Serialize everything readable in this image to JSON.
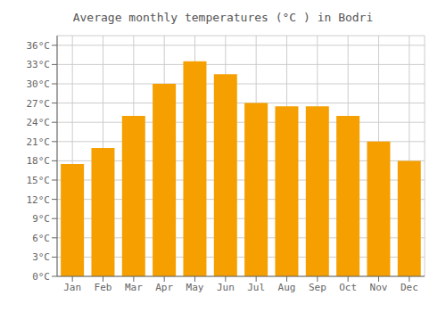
{
  "chart_data": {
    "type": "bar",
    "title": "Average monthly temperatures (°C ) in Bodri",
    "categories": [
      "Jan",
      "Feb",
      "Mar",
      "Apr",
      "May",
      "Jun",
      "Jul",
      "Aug",
      "Sep",
      "Oct",
      "Nov",
      "Dec"
    ],
    "values": [
      17.5,
      20.0,
      25.0,
      30.0,
      33.5,
      31.5,
      27.0,
      26.5,
      26.5,
      25.0,
      21.0,
      18.0
    ],
    "color": "#F5A000",
    "ylim": [
      0,
      37.5
    ],
    "yticks": [
      {
        "value": 0,
        "label": "0°C"
      },
      {
        "value": 3,
        "label": "3°C"
      },
      {
        "value": 6,
        "label": "6°C"
      },
      {
        "value": 9,
        "label": "9°C"
      },
      {
        "value": 12,
        "label": "12°C"
      },
      {
        "value": 15,
        "label": "15°C"
      },
      {
        "value": 18,
        "label": "18°C"
      },
      {
        "value": 21,
        "label": "21°C"
      },
      {
        "value": 24,
        "label": "24°C"
      },
      {
        "value": 27,
        "label": "27°C"
      },
      {
        "value": 30,
        "label": "30°C"
      },
      {
        "value": 33,
        "label": "33°C"
      },
      {
        "value": 36,
        "label": "36°C"
      }
    ],
    "grid": true
  }
}
